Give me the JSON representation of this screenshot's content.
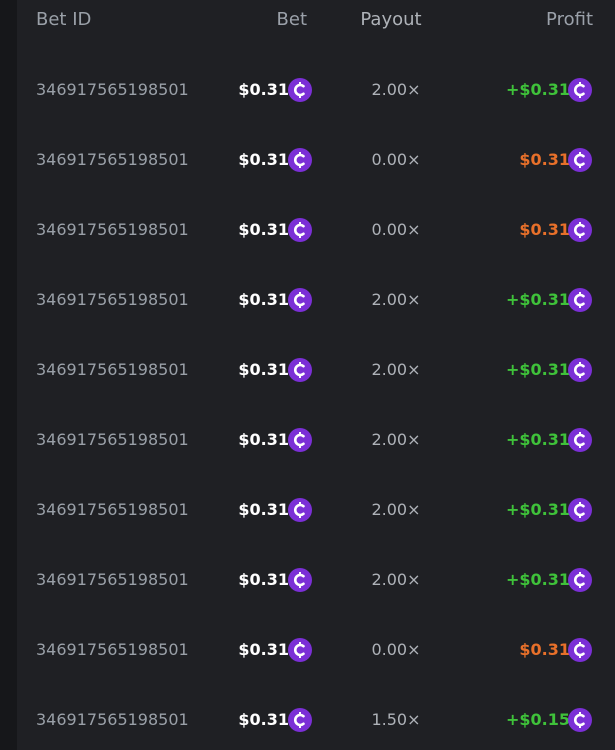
{
  "table": {
    "header": [
      "Bet ID",
      "Bet",
      "Payout",
      "Profit"
    ],
    "rows": [
      [
        "346917565198501",
        "$0.31",
        "2.00×",
        "+$0.31",
        "#3fc23a"
      ],
      [
        "346917565198501",
        "$0.31",
        "0.00×",
        "$0.31",
        "#e8702a"
      ],
      [
        "346917565198501",
        "$0.31",
        "0.00×",
        "$0.31",
        "#e8702a"
      ],
      [
        "346917565198501",
        "$0.31",
        "2.00×",
        "+$0.31",
        "#3fc23a"
      ],
      [
        "346917565198501",
        "$0.31",
        "2.00×",
        "+$0.31",
        "#3fc23a"
      ],
      [
        "346917565198501",
        "$0.31",
        "2.00×",
        "+$0.31",
        "#3fc23a"
      ],
      [
        "346917565198501",
        "$0.31",
        "2.00×",
        "+$0.31",
        "#3fc23a"
      ],
      [
        "346917565198501",
        "$0.31",
        "2.00×",
        "+$0.31",
        "#3fc23a"
      ],
      [
        "346917565198501",
        "$0.31",
        "0.00×",
        "$0.31",
        "#e8702a"
      ],
      [
        "346917565198501",
        "$0.31",
        "1.50×",
        "+$0.15",
        "#3fc23a"
      ]
    ]
  }
}
